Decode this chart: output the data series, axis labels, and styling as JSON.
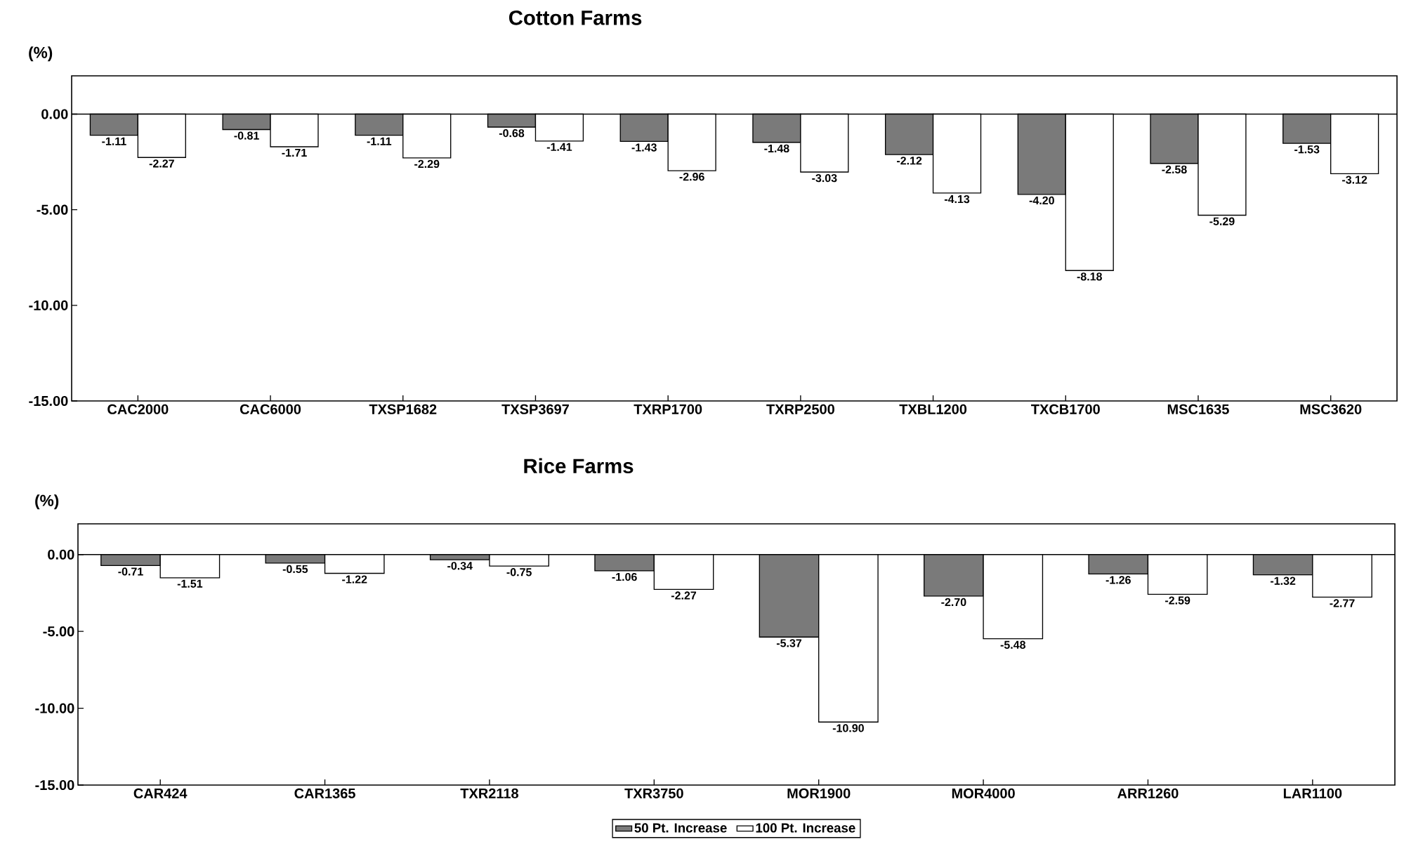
{
  "chart_data": [
    {
      "type": "bar",
      "title": "Cotton Farms",
      "ylabel": "(%)",
      "categories": [
        "CAC2000",
        "CAC6000",
        "TXSP1682",
        "TXSP3697",
        "TXRP1700",
        "TXRP2500",
        "TXBL1200",
        "TXCB1700",
        "MSC1635",
        "MSC3620"
      ],
      "series": [
        {
          "color": "#7a7a7a",
          "values": [
            -1.11,
            -0.81,
            -1.11,
            -0.68,
            -1.43,
            -1.48,
            -2.12,
            -4.2,
            -2.58,
            -1.53
          ],
          "value_labels": [
            "-1.11",
            "-0.81",
            "-1.11",
            "-0.68",
            "-1.43",
            "-1.48",
            "-2.12",
            "-4.20",
            "-2.58",
            "-1.53"
          ]
        },
        {
          "color": "#ffffff",
          "values": [
            -2.27,
            -1.71,
            -2.29,
            -1.41,
            -2.96,
            -3.03,
            -4.13,
            -8.18,
            -5.29,
            -3.12
          ],
          "value_labels": [
            "-2.27",
            "-1.71",
            "-2.29",
            "-1.41",
            "-2.96",
            "-3.03",
            "-4.13",
            "-8.18",
            "-5.29",
            "-3.12"
          ]
        }
      ],
      "ylim": [
        -15,
        2
      ],
      "yticks": [
        {
          "value": 0,
          "label": "0.00"
        },
        {
          "value": -5,
          "label": "-5.00"
        },
        {
          "value": -10,
          "label": "-10.00"
        },
        {
          "value": -15,
          "label": "-15.00"
        }
      ]
    },
    {
      "type": "bar",
      "title": "Rice Farms",
      "ylabel": "(%)",
      "categories": [
        "CAR424",
        "CAR1365",
        "TXR2118",
        "TXR3750",
        "MOR1900",
        "MOR4000",
        "ARR1260",
        "LAR1100"
      ],
      "series": [
        {
          "name": "50 Pt. Increase",
          "color": "#7a7a7a",
          "values": [
            -0.71,
            -0.55,
            -0.34,
            -1.06,
            -5.37,
            -2.7,
            -1.26,
            -1.32
          ],
          "value_labels": [
            "-0.71",
            "-0.55",
            "-0.34",
            "-1.06",
            "-5.37",
            "-2.70",
            "-1.26",
            "-1.32"
          ]
        },
        {
          "name": "100 Pt. Increase",
          "color": "#ffffff",
          "values": [
            -1.51,
            -1.22,
            -0.75,
            -2.27,
            -10.9,
            -5.48,
            -2.59,
            -2.77
          ],
          "value_labels": [
            "-1.51",
            "-1.22",
            "-0.75",
            "-2.27",
            "-10.90",
            "-5.48",
            "-2.59",
            "-2.77"
          ]
        }
      ],
      "ylim": [
        -15,
        2
      ],
      "yticks": [
        {
          "value": 0,
          "label": "0.00"
        },
        {
          "value": -5,
          "label": "-5.00"
        },
        {
          "value": -10,
          "label": "-10.00"
        },
        {
          "value": -15,
          "label": "-15.00"
        }
      ],
      "legend": "bottom"
    }
  ]
}
